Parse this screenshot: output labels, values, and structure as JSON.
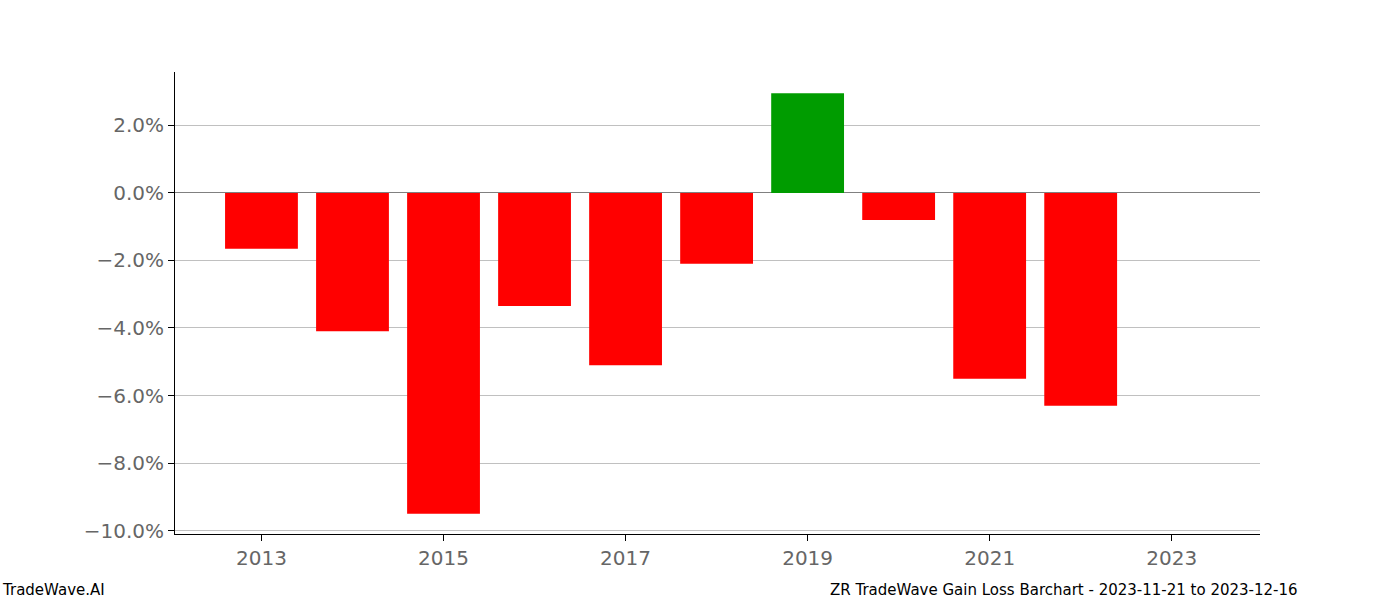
{
  "chart_data": {
    "type": "bar",
    "title": "ZR TradeWave Gain Loss Barchart - 2023-11-21 to 2023-12-16",
    "source": "TradeWave.AI",
    "x": [
      2013,
      2014,
      2015,
      2016,
      2017,
      2018,
      2019,
      2020,
      2021,
      2022
    ],
    "values": [
      -1.65,
      -4.1,
      -9.5,
      -3.35,
      -5.1,
      -2.1,
      2.95,
      -0.8,
      -5.5,
      -6.3
    ],
    "colors": [
      "#ff0000",
      "#ff0000",
      "#ff0000",
      "#ff0000",
      "#ff0000",
      "#ff0000",
      "#009c00",
      "#ff0000",
      "#ff0000",
      "#ff0000"
    ],
    "xlim": [
      2012.05,
      2023.97
    ],
    "xticks": [
      2013,
      2015,
      2017,
      2019,
      2021,
      2023
    ],
    "ylim": [
      -10.1,
      3.58
    ],
    "yticks": [
      {
        "value": -10,
        "label": "−10.0%"
      },
      {
        "value": -8,
        "label": "−8.0%"
      },
      {
        "value": -6,
        "label": "−6.0%"
      },
      {
        "value": -4,
        "label": "−4.0%"
      },
      {
        "value": -2,
        "label": "−2.0%"
      },
      {
        "value": 0,
        "label": "0.0%"
      },
      {
        "value": 2,
        "label": "2.0%"
      }
    ],
    "grid": true
  }
}
